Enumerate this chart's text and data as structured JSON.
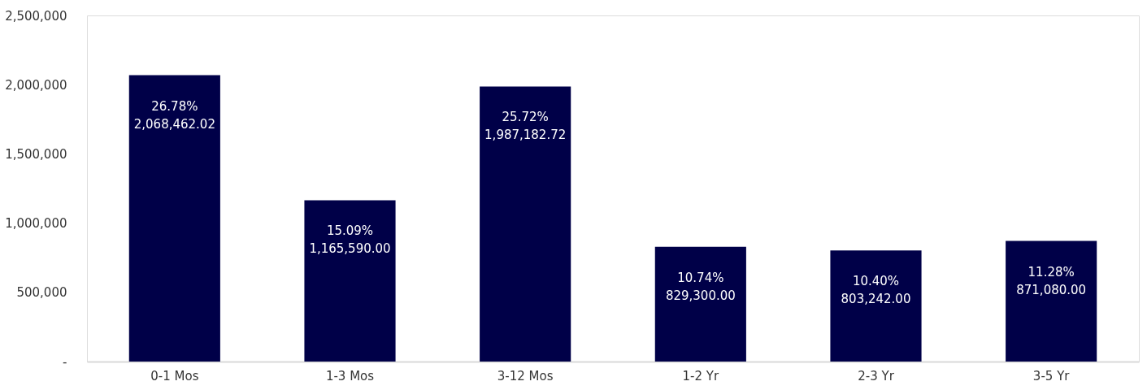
{
  "chart_data": {
    "type": "bar",
    "categories": [
      "0-1 Mos",
      "1-3 Mos",
      "3-12 Mos",
      "1-2 Yr",
      "2-3 Yr",
      "3-5 Yr"
    ],
    "values": [
      2068462.02,
      1165590.0,
      1987182.72,
      829300.0,
      803242.0,
      871080.0
    ],
    "value_labels": [
      "26.78%\n2,068,462.02",
      "15.09%\n1,165,590.00",
      "25.72%\n1,987,182.72",
      "10.74%\n829,300.00",
      "10.40%\n803,242.00",
      "11.28%\n871,080.00"
    ],
    "color": "#000048",
    "ylim": [
      0,
      2500000
    ],
    "yticks": [
      {
        "value": 0,
        "label": "-"
      },
      {
        "value": 500000,
        "label": "500,000"
      },
      {
        "value": 1000000,
        "label": "1,000,000"
      },
      {
        "value": 1500000,
        "label": "1,500,000"
      },
      {
        "value": 2000000,
        "label": "2,000,000"
      },
      {
        "value": 2500000,
        "label": "2,500,000"
      }
    ],
    "grid": false
  }
}
